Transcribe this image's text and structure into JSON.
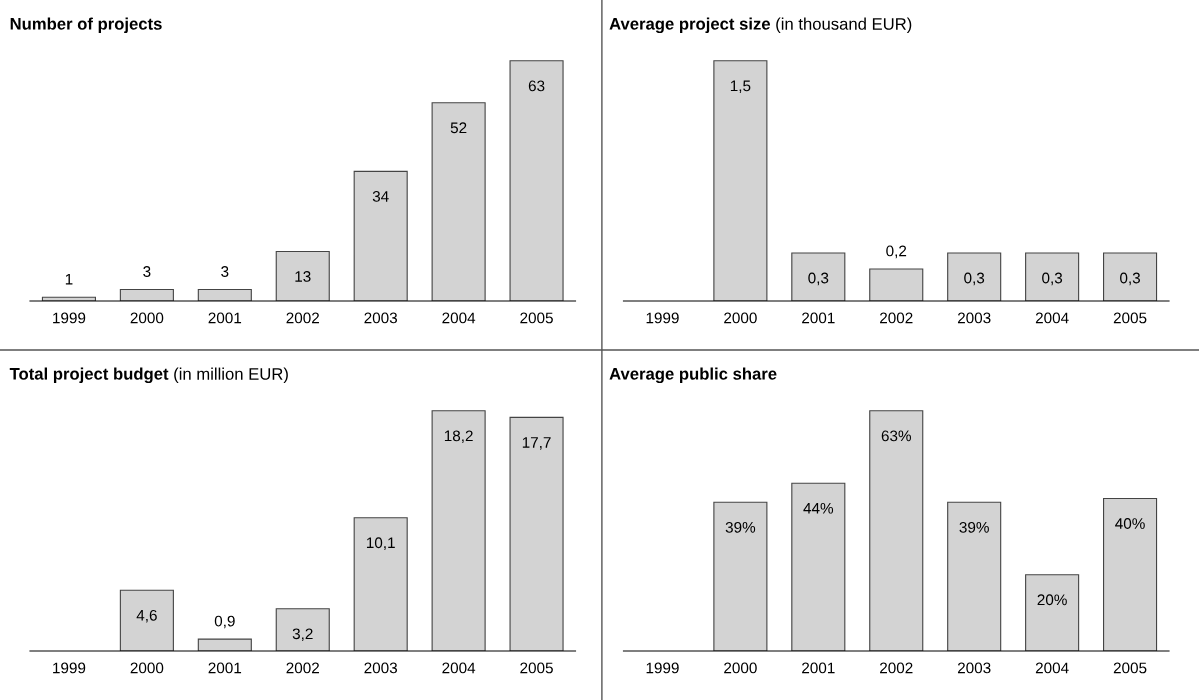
{
  "chart_data": [
    {
      "type": "bar",
      "title": "Number of projects",
      "categories": [
        "1999",
        "2000",
        "2001",
        "2002",
        "2003",
        "2004",
        "2005"
      ],
      "values": [
        1,
        3,
        3,
        13,
        34,
        52,
        63
      ],
      "color": "#d3d3d3",
      "data_labels": true,
      "grid": false,
      "legend": false
    },
    {
      "type": "bar",
      "title": "Average project size",
      "subtitle": "(in thousand EUR)",
      "categories": [
        "1999",
        "2000",
        "2001",
        "2002",
        "2003",
        "2004",
        "2005"
      ],
      "values": [
        null,
        1.5,
        0.3,
        0.2,
        0.3,
        0.3,
        0.3
      ],
      "value_labels": [
        null,
        "1,5",
        "0,3",
        "0,2",
        "0,3",
        "0,3",
        "0,3"
      ],
      "color": "#d3d3d3",
      "grid": false,
      "legend": false
    },
    {
      "type": "bar",
      "title": "Total project budget",
      "subtitle": "(in million EUR)",
      "categories": [
        "1999",
        "2000",
        "2001",
        "2002",
        "2003",
        "2004",
        "2005"
      ],
      "values": [
        null,
        4.6,
        0.9,
        3.2,
        10.1,
        18.2,
        17.7
      ],
      "value_labels": [
        null,
        "4,6",
        "0,9",
        "3,2",
        "10,1",
        "18,2",
        "17,7"
      ],
      "color": "#d3d3d3",
      "grid": false,
      "legend": false
    },
    {
      "type": "bar",
      "title": "Average public share",
      "categories": [
        "1999",
        "2000",
        "2001",
        "2002",
        "2003",
        "2004",
        "2005"
      ],
      "values": [
        null,
        39,
        44,
        63,
        39,
        20,
        40
      ],
      "value_labels": [
        null,
        "39%",
        "44%",
        "63%",
        "39%",
        "20%",
        "40%"
      ],
      "color": "#d3d3d3",
      "grid": false,
      "legend": false
    }
  ]
}
